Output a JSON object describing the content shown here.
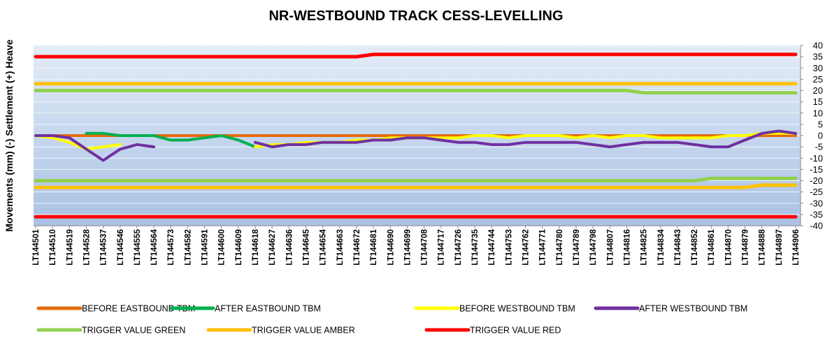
{
  "chart_data": {
    "type": "line",
    "title": "NR-WESTBOUND TRACK CESS-LEVELLING",
    "y_label": "Movements (mm) (-) Settlement (+) Heave",
    "categories": [
      "LT144501",
      "LT144510",
      "LT144519",
      "LT144528",
      "LT144537",
      "LT144546",
      "LT144555",
      "LT144564",
      "LT144573",
      "LT144582",
      "LT144591",
      "LT144600",
      "LT144609",
      "LT144618",
      "LT144627",
      "LT144636",
      "LT144645",
      "LT144654",
      "LT144663",
      "LT144672",
      "LT144681",
      "LT144690",
      "LT144699",
      "LT144708",
      "LT144717",
      "LT144726",
      "LT144735",
      "LT144744",
      "LT144753",
      "LT144762",
      "LT144771",
      "LT144780",
      "LT144789",
      "LT144798",
      "LT144807",
      "LT144816",
      "LT144825",
      "LT144834",
      "LT144843",
      "LT144852",
      "LT144861",
      "LT144870",
      "LT144879",
      "LT144888",
      "LT144897",
      "LT144906"
    ],
    "ylim": [
      -40,
      40
    ],
    "yticks": [
      -40,
      -35,
      -30,
      -25,
      -20,
      -15,
      -10,
      -5,
      0,
      5,
      10,
      15,
      20,
      25,
      30,
      35,
      40
    ],
    "grid": true,
    "series": [
      {
        "name": "BEFORE EASTBOUND TBM",
        "color": "#e46c0a",
        "values": [
          0,
          0,
          0,
          0,
          0,
          0,
          0,
          0,
          0,
          0,
          0,
          0,
          0,
          0,
          0,
          0,
          0,
          0,
          0,
          0,
          0,
          0,
          0,
          0,
          0,
          0,
          0,
          0,
          0,
          0,
          0,
          0,
          0,
          0,
          0,
          0,
          0,
          0,
          0,
          0,
          0,
          0,
          0,
          0,
          0,
          0
        ]
      },
      {
        "name": "AFTER EASTBOUND TBM",
        "color": "#00b050",
        "values": [
          null,
          null,
          null,
          1,
          1,
          0,
          0,
          0,
          -2,
          -2,
          -1,
          0,
          -2,
          -5,
          null,
          null,
          null,
          null,
          null,
          null,
          null,
          null,
          null,
          null,
          null,
          null,
          null,
          null,
          null,
          null,
          null,
          null,
          null,
          null,
          null,
          null,
          null,
          null,
          null,
          null,
          null,
          null,
          null,
          null,
          null,
          null
        ]
      },
      {
        "name": "BEFORE WESTBOUND TBM",
        "color": "#ffff00",
        "values": [
          0,
          -1,
          -3,
          -6,
          -5,
          -4,
          null,
          null,
          null,
          null,
          null,
          null,
          null,
          -5,
          -4,
          -4,
          -3,
          -3,
          -3,
          -2,
          -2,
          -1,
          -1,
          -1,
          -1,
          -1,
          0,
          0,
          -1,
          0,
          0,
          0,
          -1,
          0,
          -1,
          0,
          0,
          -1,
          -1,
          -1,
          -1,
          0,
          0,
          1,
          1,
          1
        ]
      },
      {
        "name": "AFTER WESTBOUND TBM",
        "color": "#7030a0",
        "values": [
          0,
          0,
          -1,
          -6,
          -11,
          -6,
          -4,
          -5,
          null,
          null,
          null,
          null,
          null,
          -3,
          -5,
          -4,
          -4,
          -3,
          -3,
          -3,
          -2,
          -2,
          -1,
          -1,
          -2,
          -3,
          -3,
          -4,
          -4,
          -3,
          -3,
          -3,
          -3,
          -4,
          -5,
          -4,
          -3,
          -3,
          -3,
          -4,
          -5,
          -5,
          -2,
          1,
          2,
          1
        ]
      },
      {
        "name": "TRIGGER VALUE GREEN",
        "color": "#92d050",
        "values": [
          20,
          20,
          20,
          20,
          20,
          20,
          20,
          20,
          20,
          20,
          20,
          20,
          20,
          20,
          20,
          20,
          20,
          20,
          20,
          20,
          20,
          20,
          20,
          20,
          20,
          20,
          20,
          20,
          20,
          20,
          20,
          20,
          20,
          20,
          20,
          20,
          19,
          19,
          19,
          19,
          19,
          19,
          19,
          19,
          19,
          19
        ],
        "lower": [
          -20,
          -20,
          -20,
          -20,
          -20,
          -20,
          -20,
          -20,
          -20,
          -20,
          -20,
          -20,
          -20,
          -20,
          -20,
          -20,
          -20,
          -20,
          -20,
          -20,
          -20,
          -20,
          -20,
          -20,
          -20,
          -20,
          -20,
          -20,
          -20,
          -20,
          -20,
          -20,
          -20,
          -20,
          -20,
          -20,
          -20,
          -20,
          -20,
          -20,
          -19,
          -19,
          -19,
          -19,
          -19,
          -19
        ]
      },
      {
        "name": "TRIGGER VALUE AMBER",
        "color": "#ffc000",
        "values": [
          23,
          23,
          23,
          23,
          23,
          23,
          23,
          23,
          23,
          23,
          23,
          23,
          23,
          23,
          23,
          23,
          23,
          23,
          23,
          23,
          23,
          23,
          23,
          23,
          23,
          23,
          23,
          23,
          23,
          23,
          23,
          23,
          23,
          23,
          23,
          23,
          23,
          23,
          23,
          23,
          23,
          23,
          23,
          23,
          23,
          23
        ],
        "lower": [
          -23,
          -23,
          -23,
          -23,
          -23,
          -23,
          -23,
          -23,
          -23,
          -23,
          -23,
          -23,
          -23,
          -23,
          -23,
          -23,
          -23,
          -23,
          -23,
          -23,
          -23,
          -23,
          -23,
          -23,
          -23,
          -23,
          -23,
          -23,
          -23,
          -23,
          -23,
          -23,
          -23,
          -23,
          -23,
          -23,
          -23,
          -23,
          -23,
          -23,
          -23,
          -23,
          -23,
          -22,
          -22,
          -22
        ]
      },
      {
        "name": "TRIGGER VALUE RED",
        "color": "#ff0000",
        "values": [
          35,
          35,
          35,
          35,
          35,
          35,
          35,
          35,
          35,
          35,
          35,
          35,
          35,
          35,
          35,
          35,
          35,
          35,
          35,
          35,
          36,
          36,
          36,
          36,
          36,
          36,
          36,
          36,
          36,
          36,
          36,
          36,
          36,
          36,
          36,
          36,
          36,
          36,
          36,
          36,
          36,
          36,
          36,
          36,
          36,
          36
        ],
        "lower": [
          -36,
          -36,
          -36,
          -36,
          -36,
          -36,
          -36,
          -36,
          -36,
          -36,
          -36,
          -36,
          -36,
          -36,
          -36,
          -36,
          -36,
          -36,
          -36,
          -36,
          -36,
          -36,
          -36,
          -36,
          -36,
          -36,
          -36,
          -36,
          -36,
          -36,
          -36,
          -36,
          -36,
          -36,
          -36,
          -36,
          -36,
          -36,
          -36,
          -36,
          -36,
          -36,
          -36,
          -36,
          -36,
          -36
        ]
      }
    ]
  }
}
